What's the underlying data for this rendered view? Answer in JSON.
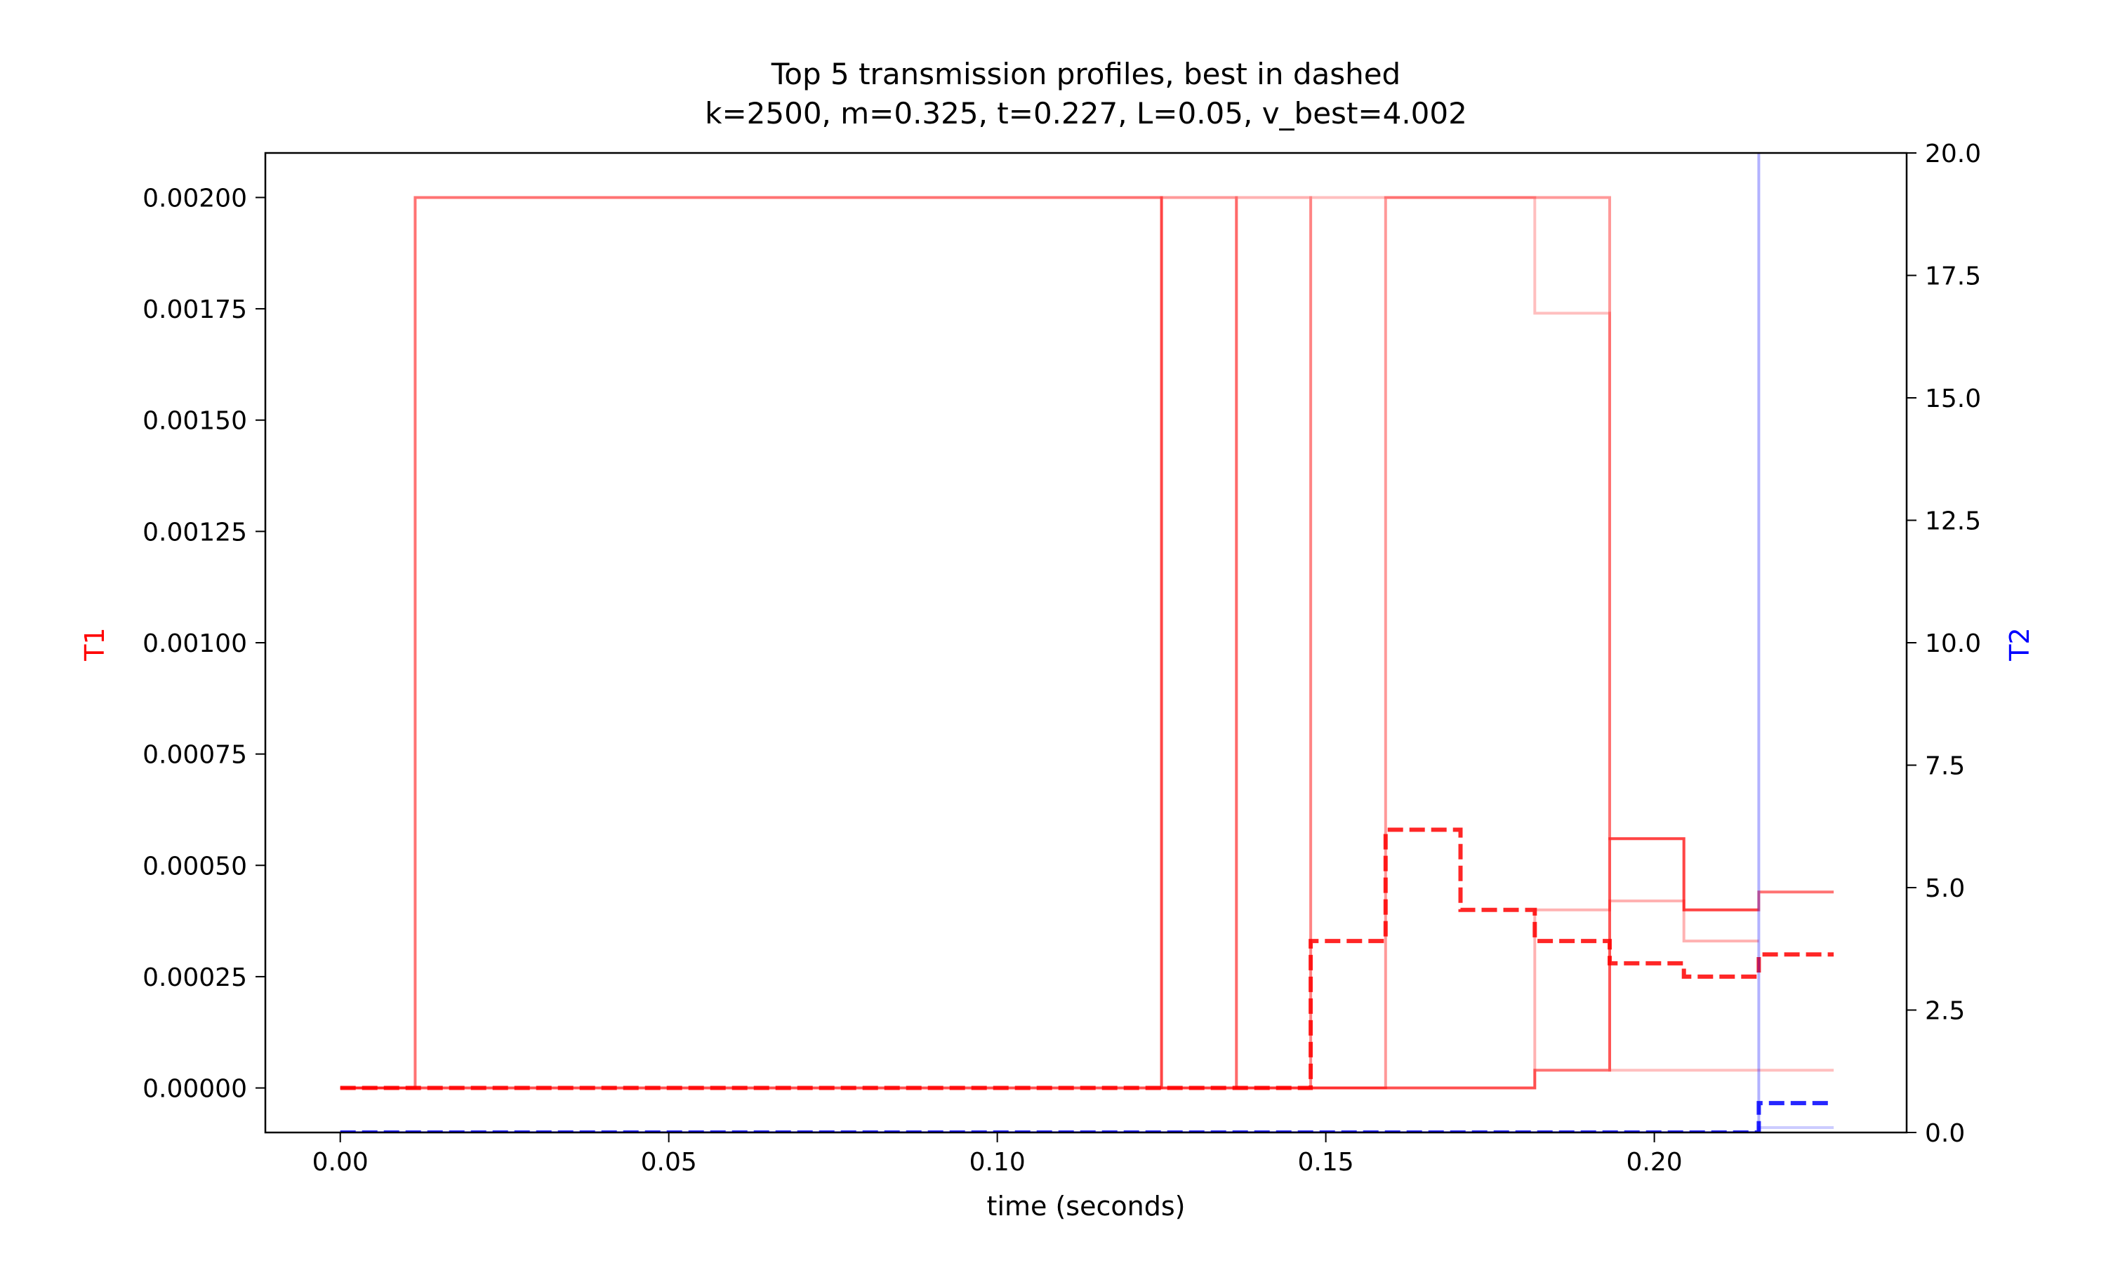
{
  "chart_data": {
    "type": "line",
    "title": "Top 5 transmission profiles, best in dashed",
    "subtitle": "k=2500, m=0.325, t=0.227, L=0.05, v_best=4.002",
    "xlabel": "time (seconds)",
    "ylabel_left": "T1",
    "ylabel_right": "T2",
    "xlim": [
      -0.0114,
      0.2384
    ],
    "ylim_left": [
      -0.0001,
      0.0021
    ],
    "ylim_right": [
      0,
      20
    ],
    "x_ticks": [
      0.0,
      0.05,
      0.1,
      0.15,
      0.2
    ],
    "x_tick_labels": [
      "0.00",
      "0.05",
      "0.10",
      "0.15",
      "0.20"
    ],
    "y_left_ticks": [
      0,
      0.00025,
      0.0005,
      0.00075,
      0.001,
      0.00125,
      0.0015,
      0.00175,
      0.002
    ],
    "y_left_tick_labels": [
      "0.00000",
      "0.00025",
      "0.00050",
      "0.00075",
      "0.00100",
      "0.00125",
      "0.00150",
      "0.00175",
      "0.00200"
    ],
    "y_right_ticks": [
      0,
      2.5,
      5,
      7.5,
      10,
      12.5,
      15,
      17.5,
      20
    ],
    "y_right_tick_labels": [
      "0.0",
      "2.5",
      "5.0",
      "7.5",
      "10.0",
      "12.5",
      "15.0",
      "17.5",
      "20.0"
    ],
    "grid": false,
    "colors": {
      "t1": "#ff0000",
      "t2": "#0000ff",
      "label_left": "#ff0000",
      "label_right": "#0000ff"
    },
    "t1_profiles": [
      {
        "style": "solid",
        "opacity": 0.55,
        "x": [
          0,
          0.0114,
          0.0114,
          0.125,
          0.125,
          0.1818,
          0.1818,
          0.1932,
          0.1932,
          0.2045,
          0.2045,
          0.2159,
          0.2159,
          0.2273
        ],
        "y": [
          0,
          0,
          0.002,
          0.002,
          0,
          0,
          4e-05,
          4e-05,
          0.00056,
          0.00056,
          0.0004,
          0.0004,
          0.00044,
          0.00044
        ]
      },
      {
        "style": "solid",
        "opacity": 0.4,
        "x": [
          0,
          0.125,
          0.125,
          0.1364,
          0.1364,
          0.1591,
          0.1591,
          0.1932,
          0.1932,
          0.2045,
          0.2045,
          0.2159
        ],
        "y": [
          0,
          0,
          0.002,
          0.002,
          0,
          0,
          0.002,
          0.002,
          0.00056,
          0.00056,
          0.0004,
          0.0004
        ]
      },
      {
        "style": "solid",
        "opacity": 0.3,
        "x": [
          0,
          0.1364,
          0.1364,
          0.1477,
          0.1477,
          0.1818,
          0.1818,
          0.1932,
          0.1932,
          0.2045,
          0.2045,
          0.2159
        ],
        "y": [
          0,
          0,
          0.002,
          0.002,
          0,
          0,
          0.0004,
          0.0004,
          0.00042,
          0.00042,
          0.00033,
          0.00033
        ]
      },
      {
        "style": "solid",
        "opacity": 0.25,
        "x": [
          0,
          0.1477,
          0.1477,
          0.1818,
          0.1818,
          0.1932,
          0.1932,
          0.2159,
          0.2159,
          0.2273
        ],
        "y": [
          0,
          0,
          0.002,
          0.002,
          0.00174,
          0.00174,
          4e-05,
          4e-05,
          4e-05,
          4e-05
        ]
      },
      {
        "style": "dashed",
        "opacity": 0.85,
        "best": true,
        "x": [
          0,
          0.1477,
          0.1477,
          0.1591,
          0.1591,
          0.1705,
          0.1705,
          0.1818,
          0.1818,
          0.1932,
          0.1932,
          0.2045,
          0.2045,
          0.2159,
          0.2159,
          0.2273
        ],
        "y": [
          0,
          0,
          0.00033,
          0.00033,
          0.00058,
          0.00058,
          0.0004,
          0.0004,
          0.00033,
          0.00033,
          0.00028,
          0.00028,
          0.00025,
          0.00025,
          0.0003,
          0.0003
        ]
      }
    ],
    "t2_profiles": [
      {
        "style": "solid",
        "opacity": 0.2,
        "x": [
          0,
          0.2159,
          0.2159,
          0.2273
        ],
        "y": [
          0,
          0,
          0.1,
          0.1
        ]
      },
      {
        "style": "solid",
        "opacity": 0.3,
        "x": [
          0,
          0.2159,
          0.2159,
          0.2273
        ],
        "y": [
          0,
          0,
          21,
          21
        ]
      },
      {
        "style": "dashed",
        "opacity": 0.85,
        "best": true,
        "x": [
          0,
          0.2159,
          0.2159,
          0.2273
        ],
        "y": [
          0,
          0,
          0.6,
          0.6
        ]
      }
    ]
  }
}
